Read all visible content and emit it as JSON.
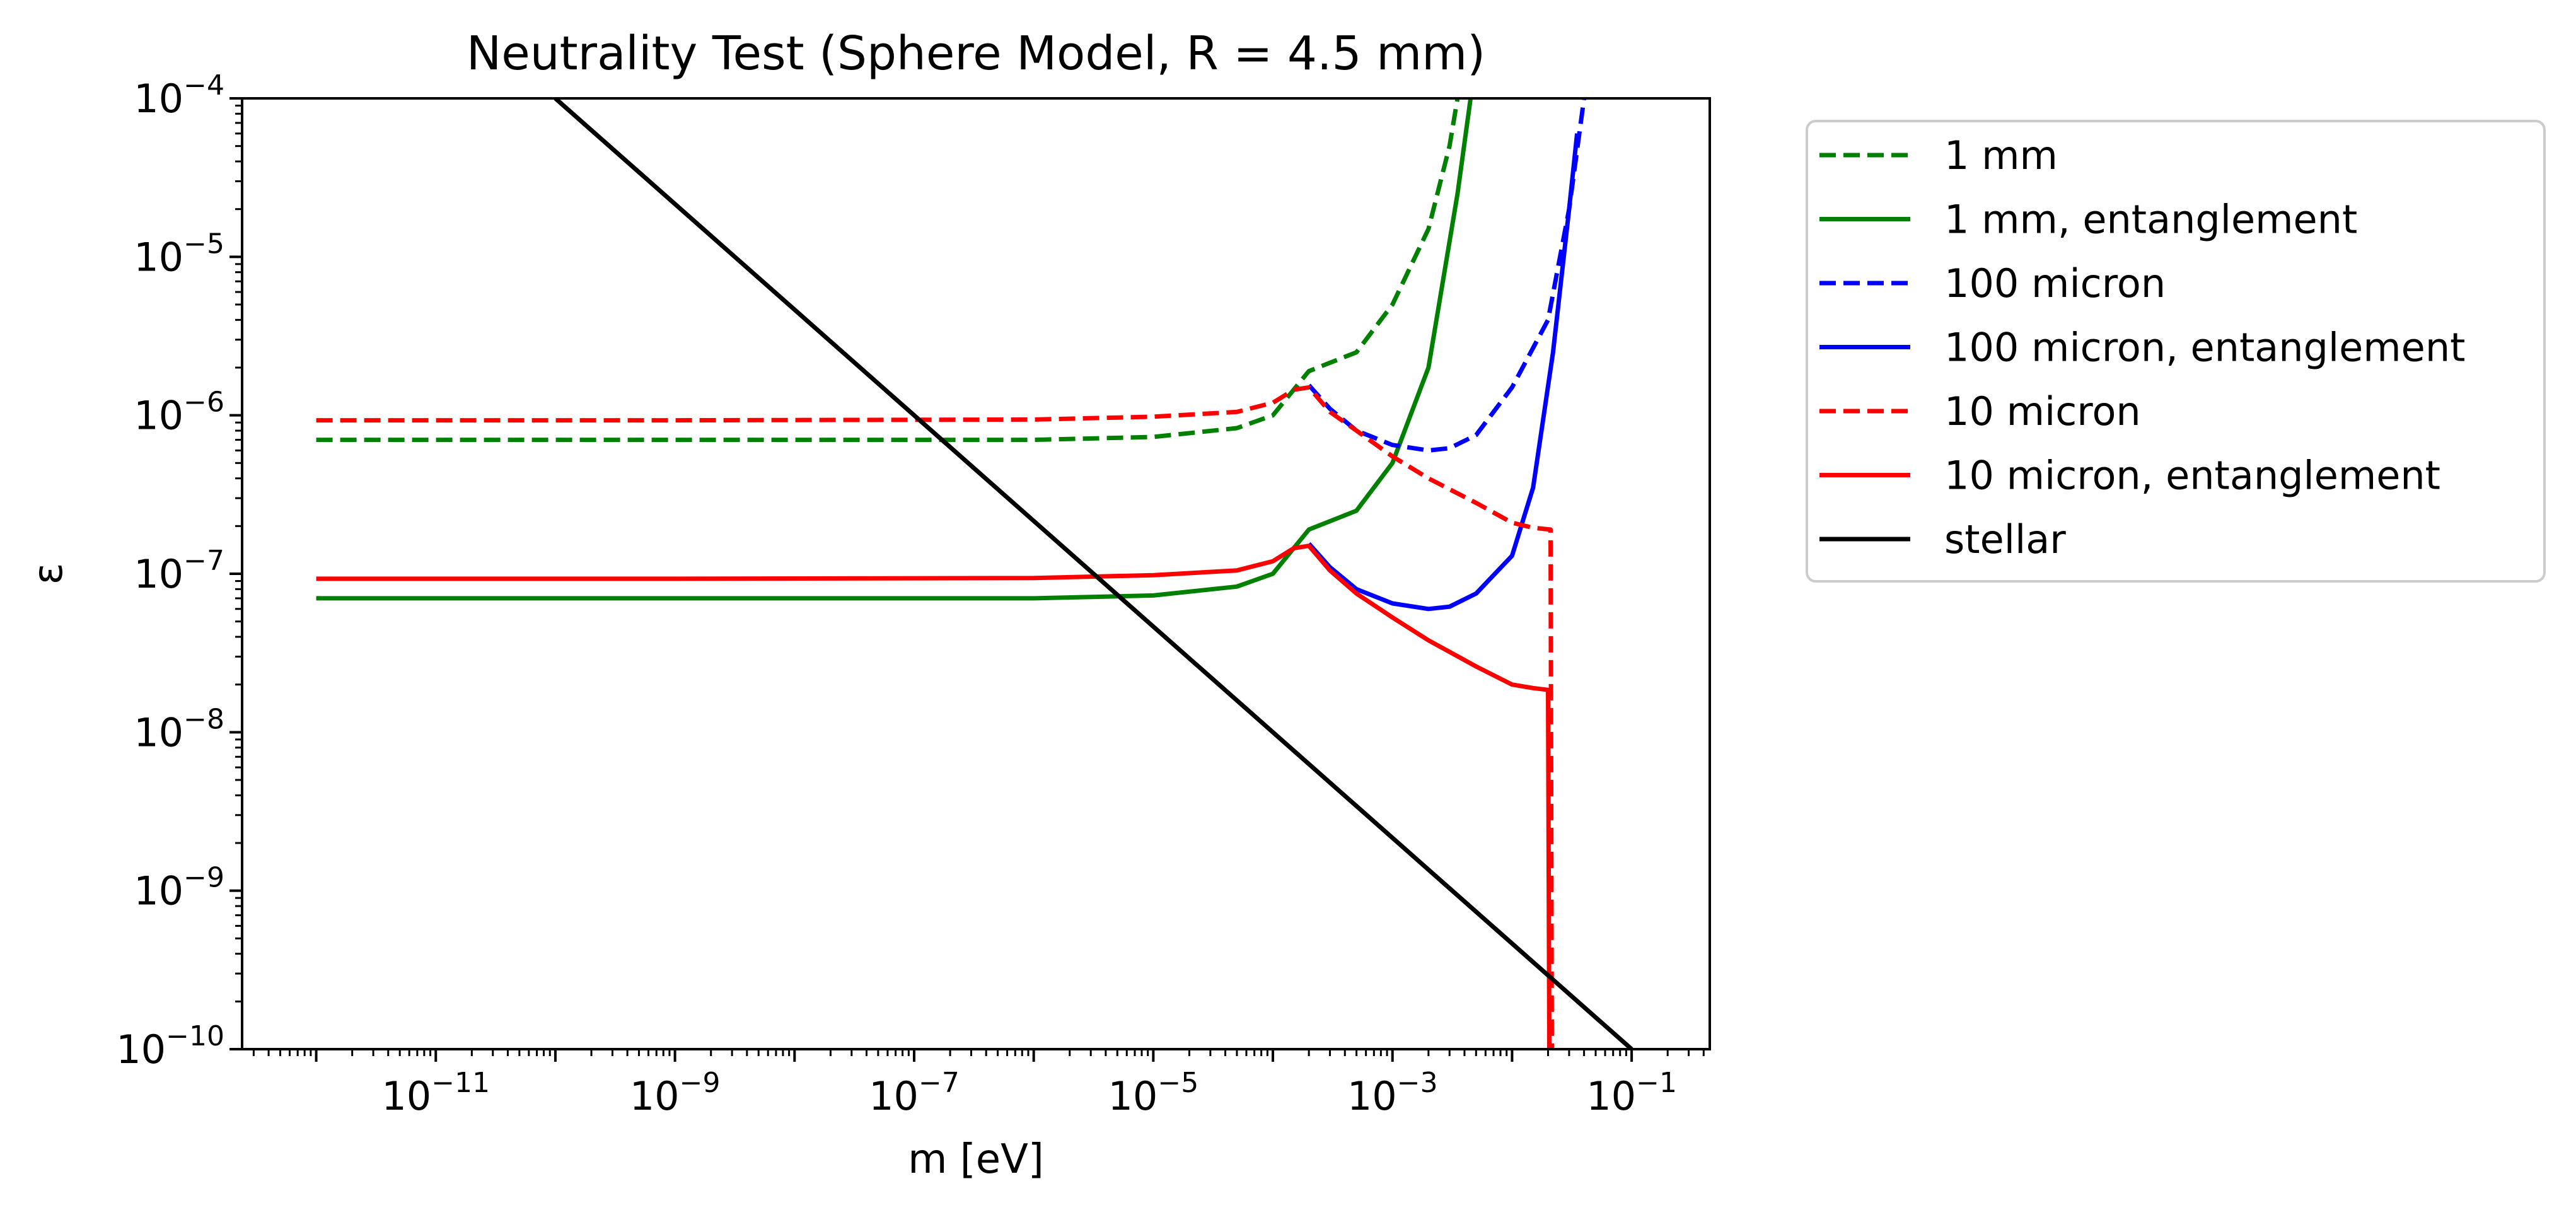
{
  "chart_data": {
    "type": "line",
    "title": "Neutrality Test (Sphere Model, R = 4.5 mm)",
    "xlabel": "m [eV]",
    "ylabel": "ε",
    "xscale": "log",
    "yscale": "log",
    "xlim": [
      2.4e-13,
      0.45
    ],
    "ylim": [
      1e-10,
      0.0001
    ],
    "grid": false,
    "legend_position": "outside-right-top",
    "x_ticks": [
      {
        "value": 1e-11,
        "base": "10",
        "exp": "−11"
      },
      {
        "value": 1e-09,
        "base": "10",
        "exp": "−9"
      },
      {
        "value": 1e-07,
        "base": "10",
        "exp": "−7"
      },
      {
        "value": 1e-05,
        "base": "10",
        "exp": "−5"
      },
      {
        "value": 0.001,
        "base": "10",
        "exp": "−3"
      },
      {
        "value": 0.1,
        "base": "10",
        "exp": "−1"
      }
    ],
    "y_ticks": [
      {
        "value": 1e-10,
        "base": "10",
        "exp": "−10"
      },
      {
        "value": 1e-09,
        "base": "10",
        "exp": "−9"
      },
      {
        "value": 1e-08,
        "base": "10",
        "exp": "−8"
      },
      {
        "value": 1e-07,
        "base": "10",
        "exp": "−7"
      },
      {
        "value": 1e-06,
        "base": "10",
        "exp": "−6"
      },
      {
        "value": 1e-05,
        "base": "10",
        "exp": "−5"
      },
      {
        "value": 0.0001,
        "base": "10",
        "exp": "−4"
      }
    ],
    "series": [
      {
        "name": "1 mm",
        "color": "#008000",
        "dash": true,
        "points": [
          [
            1e-12,
            7e-07
          ],
          [
            1e-09,
            7e-07
          ],
          [
            1e-06,
            7e-07
          ],
          [
            1e-05,
            7.3e-07
          ],
          [
            5e-05,
            8.3e-07
          ],
          [
            0.0001,
            1e-06
          ],
          [
            0.0002,
            1.9e-06
          ],
          [
            0.0005,
            2.5e-06
          ],
          [
            0.001,
            5e-06
          ],
          [
            0.002,
            1.5e-05
          ],
          [
            0.003,
            5e-05
          ],
          [
            0.0035,
            0.0001
          ]
        ]
      },
      {
        "name": "1 mm, entanglement",
        "color": "#008000",
        "dash": false,
        "points": [
          [
            1e-12,
            7e-08
          ],
          [
            1e-09,
            7e-08
          ],
          [
            1e-06,
            7e-08
          ],
          [
            1e-05,
            7.3e-08
          ],
          [
            5e-05,
            8.3e-08
          ],
          [
            0.0001,
            1e-07
          ],
          [
            0.0002,
            1.9e-07
          ],
          [
            0.0005,
            2.5e-07
          ],
          [
            0.001,
            5e-07
          ],
          [
            0.002,
            2e-06
          ],
          [
            0.0035,
            2.5e-05
          ],
          [
            0.0045,
            0.0001
          ]
        ]
      },
      {
        "name": "100 micron",
        "color": "#0000ff",
        "dash": true,
        "points": [
          [
            0.0002,
            1.55e-06
          ],
          [
            0.0003,
            1.1e-06
          ],
          [
            0.0005,
            8e-07
          ],
          [
            0.001,
            6.5e-07
          ],
          [
            0.002,
            6e-07
          ],
          [
            0.003,
            6.2e-07
          ],
          [
            0.005,
            7.5e-07
          ],
          [
            0.01,
            1.5e-06
          ],
          [
            0.02,
            4e-06
          ],
          [
            0.03,
            2e-05
          ],
          [
            0.04,
            0.0001
          ]
        ]
      },
      {
        "name": "100 micron, entanglement",
        "color": "#0000ff",
        "dash": false,
        "points": [
          [
            0.0002,
            1.55e-07
          ],
          [
            0.0003,
            1.1e-07
          ],
          [
            0.0005,
            8e-08
          ],
          [
            0.001,
            6.5e-08
          ],
          [
            0.002,
            6e-08
          ],
          [
            0.003,
            6.2e-08
          ],
          [
            0.005,
            7.5e-08
          ],
          [
            0.01,
            1.3e-07
          ],
          [
            0.015,
            3.5e-07
          ],
          [
            0.022,
            2.5e-06
          ],
          [
            0.03,
            2e-05
          ],
          [
            0.035,
            6e-05
          ]
        ]
      },
      {
        "name": "10 micron",
        "color": "#ff0000",
        "dash": true,
        "points": [
          [
            1e-12,
            9.3e-07
          ],
          [
            1e-09,
            9.3e-07
          ],
          [
            1e-06,
            9.4e-07
          ],
          [
            1e-05,
            9.8e-07
          ],
          [
            5e-05,
            1.05e-06
          ],
          [
            0.0001,
            1.2e-06
          ],
          [
            0.00015,
            1.45e-06
          ],
          [
            0.0002,
            1.5e-06
          ],
          [
            0.0003,
            1.05e-06
          ],
          [
            0.0005,
            8e-07
          ],
          [
            0.001,
            5.5e-07
          ],
          [
            0.002,
            4e-07
          ],
          [
            0.005,
            2.8e-07
          ],
          [
            0.01,
            2.1e-07
          ],
          [
            0.015,
            1.95e-07
          ],
          [
            0.021,
            1.9e-07
          ],
          [
            0.0215,
            1e-10
          ]
        ]
      },
      {
        "name": "10 micron, entanglement",
        "color": "#ff0000",
        "dash": false,
        "points": [
          [
            1e-12,
            9.3e-08
          ],
          [
            1e-09,
            9.3e-08
          ],
          [
            1e-06,
            9.4e-08
          ],
          [
            1e-05,
            9.8e-08
          ],
          [
            5e-05,
            1.05e-07
          ],
          [
            0.0001,
            1.2e-07
          ],
          [
            0.00015,
            1.45e-07
          ],
          [
            0.0002,
            1.5e-07
          ],
          [
            0.0003,
            1.05e-07
          ],
          [
            0.0005,
            7.5e-08
          ],
          [
            0.001,
            5.3e-08
          ],
          [
            0.002,
            3.8e-08
          ],
          [
            0.005,
            2.6e-08
          ],
          [
            0.01,
            2e-08
          ],
          [
            0.015,
            1.9e-08
          ],
          [
            0.02,
            1.85e-08
          ],
          [
            0.0205,
            1e-10
          ]
        ]
      },
      {
        "name": "stellar",
        "color": "#000000",
        "dash": false,
        "points": [
          [
            1e-10,
            0.0001
          ],
          [
            0.1,
            1e-10
          ]
        ]
      }
    ]
  }
}
